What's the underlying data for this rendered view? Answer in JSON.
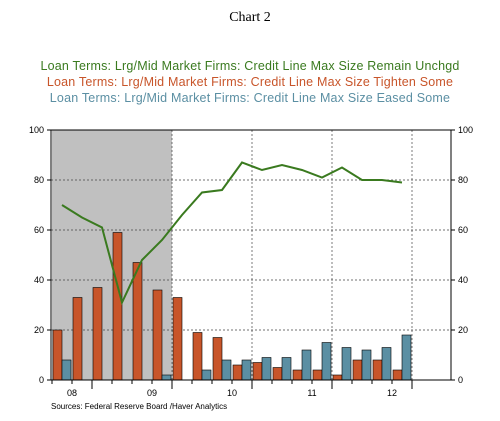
{
  "page_title": "Chart 2",
  "source_note": "Sources:  Federal Reserve Board /Haver Analytics",
  "chart_data": {
    "type": "bar",
    "title": "Chart 2",
    "x_tick_labels": [
      "08",
      "09",
      "10",
      "11",
      "12"
    ],
    "y_ticks": [
      0,
      20,
      40,
      60,
      80,
      100
    ],
    "ylim": [
      0,
      100
    ],
    "grid": true,
    "legend_placement": "top-center",
    "shaded_period": {
      "start_quarter": 0,
      "end_quarter": 6,
      "color": "#c0c0c0"
    },
    "quarters": [
      "2008 Q1",
      "2008 Q2",
      "2008 Q3",
      "2008 Q4",
      "2009 Q1",
      "2009 Q2",
      "2009 Q3",
      "2009 Q4",
      "2010 Q1",
      "2010 Q2",
      "2010 Q3",
      "2010 Q4",
      "2011 Q1",
      "2011 Q2",
      "2011 Q3",
      "2011 Q4",
      "2012 Q1",
      "2012 Q2"
    ],
    "series": [
      {
        "name": "Loan Terms: Lrg/Mid Market Firms: Credit Line Max Size Remain Unchgd",
        "type": "line",
        "color": "#3a7a1f",
        "values": [
          70,
          65,
          61,
          31,
          48,
          56,
          66,
          75,
          76,
          87,
          84,
          86,
          84,
          81,
          85,
          80,
          80,
          79
        ]
      },
      {
        "name": "Loan Terms: Lrg/Mid Market Firms: Credit Line Max Size Tighten Some",
        "type": "bar",
        "color": "#c8552a",
        "values": [
          20,
          33,
          37,
          59,
          47,
          36,
          33,
          19,
          17,
          6,
          7,
          5,
          4,
          4,
          2,
          8,
          8,
          4
        ]
      },
      {
        "name": "Loan Terms: Lrg/Mid Market Firms: Credit Line Max Size Eased Some",
        "type": "bar",
        "color": "#5b8fa3",
        "values": [
          8,
          null,
          null,
          null,
          null,
          2,
          null,
          4,
          8,
          8,
          9,
          9,
          12,
          15,
          13,
          12,
          13,
          18
        ]
      }
    ]
  }
}
